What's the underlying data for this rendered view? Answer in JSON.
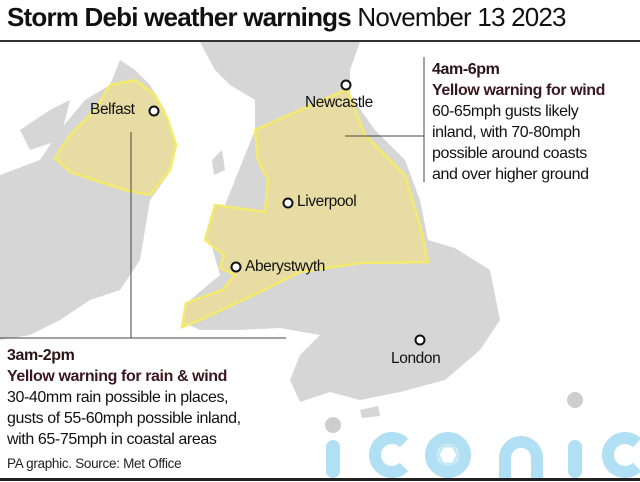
{
  "header": {
    "title_bold": "Storm Debi weather warnings",
    "title_date": "November 13 2023"
  },
  "cities": {
    "belfast": "Belfast",
    "newcastle": "Newcastle",
    "liverpool": "Liverpool",
    "aberystwyth": "Aberystwyth",
    "london": "London"
  },
  "warnings": {
    "england": {
      "time": "4am-6pm",
      "heading": "Yellow warning for wind",
      "lines": [
        "60-65mph gusts likely",
        "inland, with 70-80mph",
        "possible around coasts",
        "and over higher ground"
      ]
    },
    "northern_ireland": {
      "time": "3am-2pm",
      "heading": "Yellow warning for rain & wind",
      "lines": [
        "30-40mm rain possible in places,",
        "gusts of 55-60mph possible inland,",
        "with 65-75mph in coastal areas"
      ]
    }
  },
  "source": "PA graphic. Source: Met Office",
  "watermark": "iconic",
  "colors": {
    "land": "#d6d6d6",
    "warning_fill": "#e7dca4",
    "warning_outline": "#f4ea6c",
    "watermark": "#a9dcf2"
  }
}
